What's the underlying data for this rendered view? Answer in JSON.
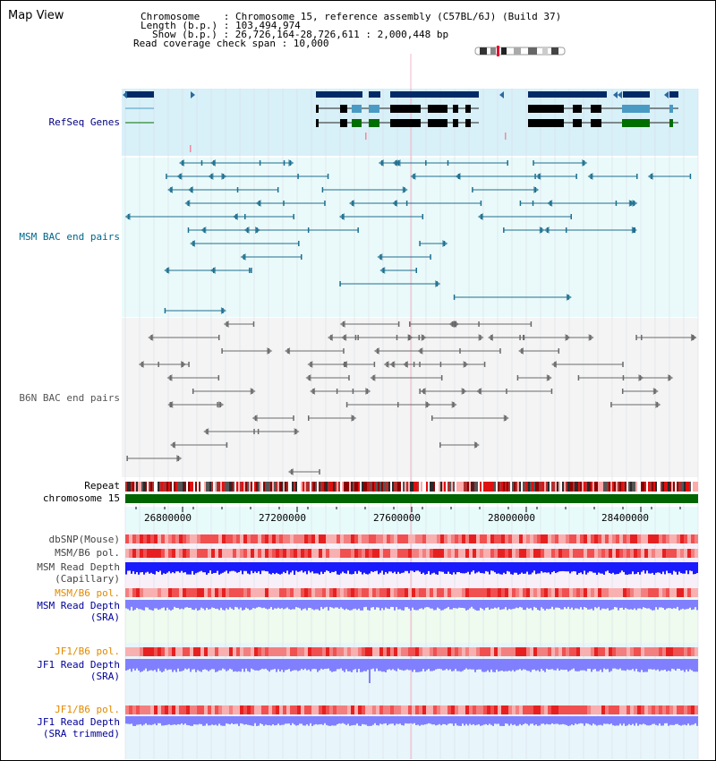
{
  "app": {
    "title": "Map View"
  },
  "info": {
    "line1": "Chromosome    : Chromosome 15, reference assembly (C57BL/6J) (Build 37)",
    "line2": "Length (b.p.) : 103,494,974",
    "line3": "Show (b.p.) : 26,726,164-28,726,611 : 2,000,448 bp",
    "line4": "Read coverage check span : 10,000"
  },
  "tracks": {
    "refseq": {
      "label": "RefSeq Genes",
      "color": "#000080"
    },
    "msm_bac": {
      "label": "MSM BAC end pairs",
      "color": "#00668a"
    },
    "b6n_bac": {
      "label": "B6N BAC end pairs",
      "color": "#555555"
    },
    "repeat": {
      "label": "Repeat"
    },
    "chromosome": {
      "label": "chromosome 15"
    },
    "dbsnp": {
      "label": "dbSNP(Mouse)"
    },
    "msm_b6_pol_1": {
      "label": "MSM/B6 pol."
    },
    "msm_read_depth_cap": {
      "label_line1": "MSM Read Depth",
      "label_line2": "(Capillary)"
    },
    "msm_b6_pol_2": {
      "label": "MSM/B6 pol.",
      "color": "#e08a00"
    },
    "msm_read_depth_sra": {
      "label_line1": "MSM Read Depth",
      "label_line2": "(SRA)",
      "color": "#000099"
    },
    "jf1_b6_pol_1": {
      "label": "JF1/B6 pol.",
      "color": "#e08a00"
    },
    "jf1_read_depth_sra": {
      "label_line1": "JF1 Read Depth",
      "label_line2": "(SRA)",
      "color": "#000099"
    },
    "jf1_b6_pol_2": {
      "label": "JF1/B6 pol.",
      "color": "#e08a00"
    },
    "jf1_read_depth_trim": {
      "label_line1": "JF1 Read Depth",
      "label_line2": "(SRA trimmed)",
      "color": "#000099"
    }
  },
  "axis": {
    "ticks": [
      "26800000",
      "27200000",
      "27600000",
      "28000000",
      "28400000"
    ]
  },
  "colors": {
    "refseq_bg": "#d8f0f8",
    "bac_bg": "#eafafa",
    "b6n_bg": "#f4f4f4",
    "chrom_green": "#006400",
    "gene_navy": "#002b66",
    "gene_teal": "#4a9bc4",
    "gene_green": "#006e00",
    "depth_blue": "#1a1aff",
    "depth_light": "#8080ff"
  },
  "icons": [
    "chromosome-ideogram-icon",
    "arrow-left-icon",
    "arrow-right-icon"
  ]
}
